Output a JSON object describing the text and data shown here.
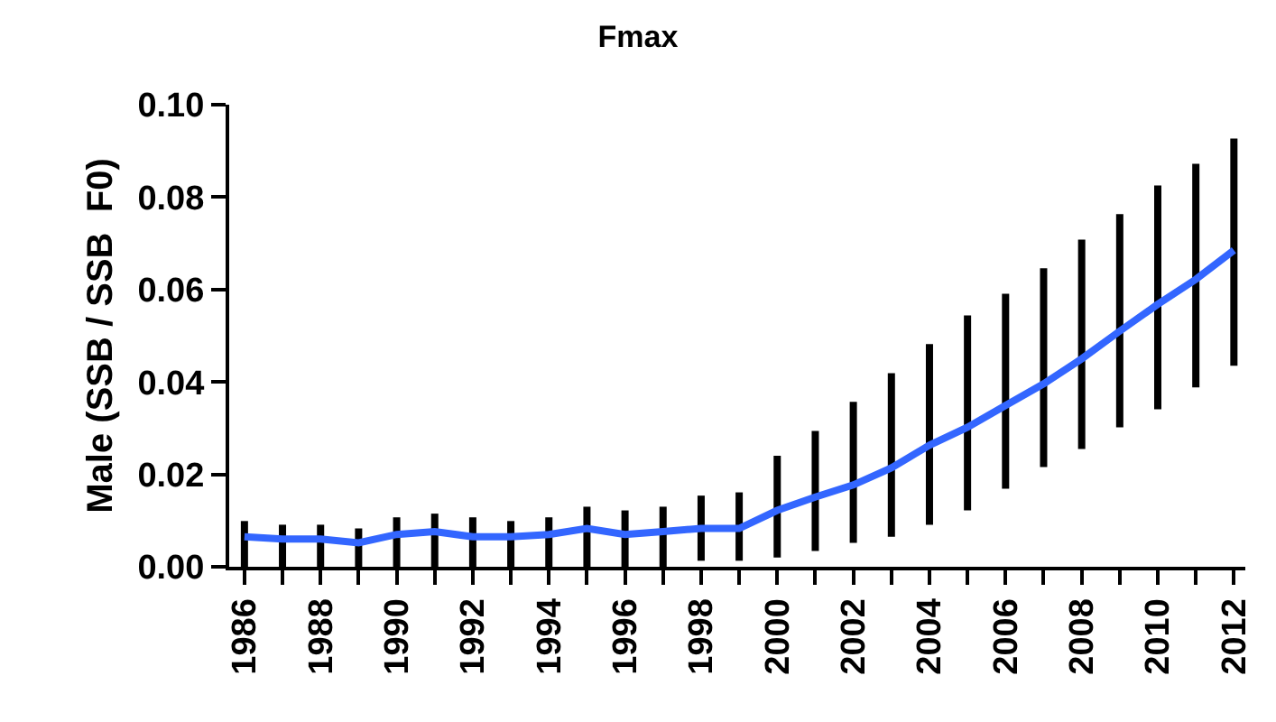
{
  "chart_data": {
    "type": "line",
    "title": "Fmax",
    "ylabel": "Male (SSB / SSB  F0)",
    "x": [
      1986,
      1987,
      1988,
      1989,
      1990,
      1991,
      1992,
      1993,
      1994,
      1995,
      1996,
      1997,
      1998,
      1999,
      2000,
      2001,
      2002,
      2003,
      2004,
      2005,
      2006,
      2007,
      2008,
      2009,
      2010,
      2011,
      2012
    ],
    "series": [
      {
        "color": "#3366ff",
        "values": [
          0.0065,
          0.006,
          0.006,
          0.0052,
          0.007,
          0.0076,
          0.0065,
          0.0065,
          0.007,
          0.0083,
          0.007,
          0.0076,
          0.0083,
          0.0083,
          0.0122,
          0.0151,
          0.0177,
          0.0214,
          0.0263,
          0.0302,
          0.0349,
          0.0396,
          0.045,
          0.051,
          0.0568,
          0.0622,
          0.0685
        ],
        "errors": [
          [
            0,
            0.0099
          ],
          [
            0,
            0.0091
          ],
          [
            0,
            0.0091
          ],
          [
            0,
            0.0083
          ],
          [
            0,
            0.0107
          ],
          [
            0,
            0.0115
          ],
          [
            0,
            0.0107
          ],
          [
            0,
            0.0099
          ],
          [
            0,
            0.0107
          ],
          [
            0,
            0.013
          ],
          [
            0,
            0.0122
          ],
          [
            0,
            0.013
          ],
          [
            0.0013,
            0.0154
          ],
          [
            0.0013,
            0.0161
          ],
          [
            0.002,
            0.024
          ],
          [
            0.0034,
            0.0294
          ],
          [
            0.0052,
            0.0357
          ],
          [
            0.0065,
            0.0419
          ],
          [
            0.0091,
            0.0482
          ],
          [
            0.0122,
            0.0544
          ],
          [
            0.0169,
            0.0591
          ],
          [
            0.0216,
            0.0646
          ],
          [
            0.0255,
            0.0708
          ],
          [
            0.0302,
            0.0763
          ],
          [
            0.0341,
            0.0825
          ],
          [
            0.0388,
            0.0872
          ],
          [
            0.0435,
            0.0927
          ]
        ]
      }
    ],
    "xlim": [
      1985.6,
      2012.3
    ],
    "xticks": [
      1986,
      {
        "value": 1987,
        "label": null
      },
      1988,
      {
        "value": 1989,
        "label": null
      },
      1990,
      {
        "value": 1991,
        "label": null
      },
      1992,
      {
        "value": 1993,
        "label": null
      },
      1994,
      {
        "value": 1995,
        "label": null
      },
      1996,
      {
        "value": 1997,
        "label": null
      },
      1998,
      {
        "value": 1999,
        "label": null
      },
      2000,
      {
        "value": 2001,
        "label": null
      },
      2002,
      {
        "value": 2003,
        "label": null
      },
      2004,
      {
        "value": 2005,
        "label": null
      },
      2006,
      {
        "value": 2007,
        "label": null
      },
      2008,
      {
        "value": 2009,
        "label": null
      },
      2010,
      {
        "value": 2011,
        "label": null
      },
      2012
    ],
    "ylim": [
      0,
      0.1
    ],
    "yticks": [
      {
        "value": 0,
        "label": "0.00"
      },
      {
        "value": 0.02,
        "label": "0.02"
      },
      {
        "value": 0.04,
        "label": "0.04"
      },
      {
        "value": 0.06,
        "label": "0.06"
      },
      {
        "value": 0.08,
        "label": "0.08"
      },
      {
        "value": 0.1,
        "label": "0.10"
      }
    ]
  }
}
